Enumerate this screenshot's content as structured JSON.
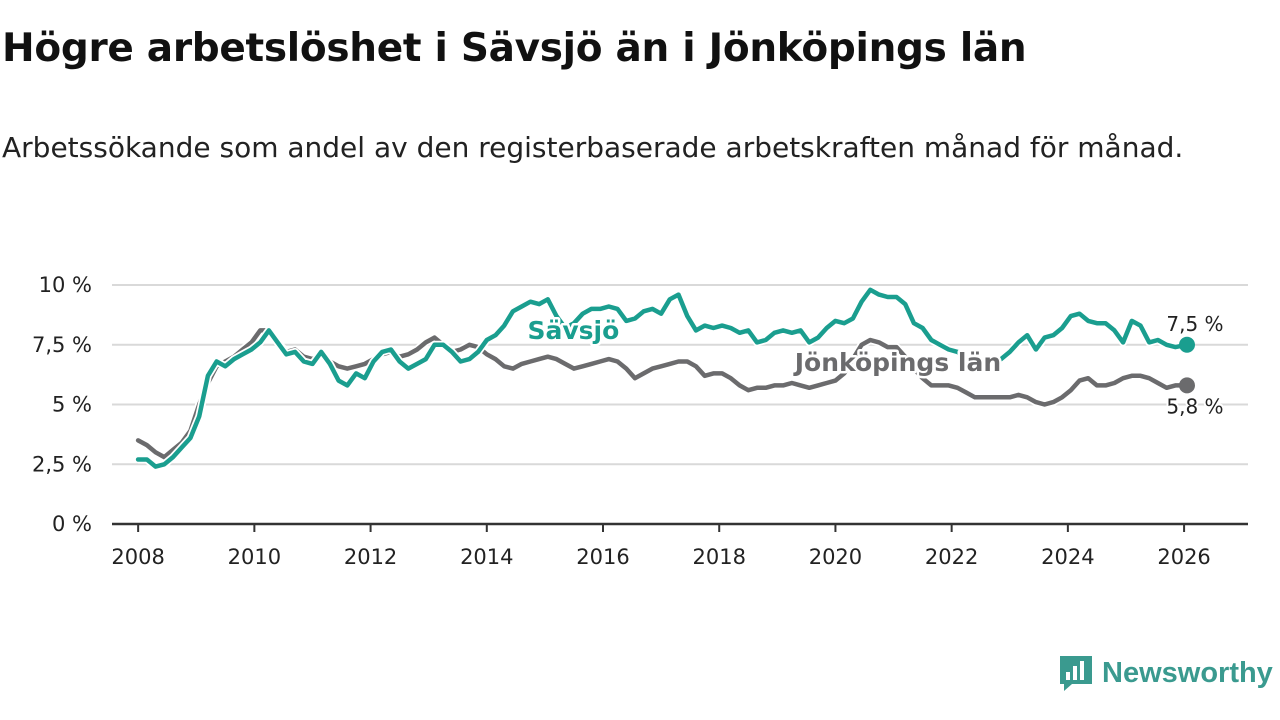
{
  "title": "Högre arbetslöshet i Sävsjö än i Jönköpings län",
  "subtitle": "Arbetssökande som andel av den registerbaserade arbetskraften månad för månad.",
  "brand": "Newsworthy",
  "colors": {
    "savsjo": "#1a9e8f",
    "lan": "#6b6b6d",
    "grid": "#d9d9d9",
    "axis": "#333333",
    "brand": "#3a9a8f"
  },
  "chart_data": {
    "type": "line",
    "title": "Högre arbetslöshet i Sävsjö än i Jönköpings län",
    "ylim": [
      0,
      10
    ],
    "xlim": [
      2007.55,
      2027.1
    ],
    "yticks": [
      0,
      2.5,
      5,
      7.5,
      10
    ],
    "ytick_labels": [
      "0 %",
      "2,5 %",
      "5 %",
      "7,5 %",
      "10 %"
    ],
    "xticks": [
      2008,
      2010,
      2012,
      2014,
      2016,
      2018,
      2020,
      2022,
      2024,
      2026
    ],
    "xtick_labels": [
      "2008",
      "2010",
      "2012",
      "2014",
      "2016",
      "2018",
      "2020",
      "2022",
      "2024",
      "2026"
    ],
    "grid": true,
    "series": [
      {
        "name": "Jönköpings län",
        "color": "#6b6b6d",
        "end_label": "5,8 %",
        "points": [
          [
            2008.0,
            3.5
          ],
          [
            2008.15,
            3.3
          ],
          [
            2008.3,
            3.0
          ],
          [
            2008.45,
            2.8
          ],
          [
            2008.6,
            3.1
          ],
          [
            2008.75,
            3.4
          ],
          [
            2008.9,
            3.9
          ],
          [
            2009.05,
            5.0
          ],
          [
            2009.2,
            5.9
          ],
          [
            2009.35,
            6.6
          ],
          [
            2009.5,
            6.8
          ],
          [
            2009.65,
            7.0
          ],
          [
            2009.8,
            7.3
          ],
          [
            2009.95,
            7.6
          ],
          [
            2010.1,
            8.1
          ],
          [
            2010.25,
            8.1
          ],
          [
            2010.4,
            7.6
          ],
          [
            2010.55,
            7.2
          ],
          [
            2010.7,
            7.3
          ],
          [
            2010.85,
            7.0
          ],
          [
            2011.0,
            6.9
          ],
          [
            2011.15,
            7.1
          ],
          [
            2011.3,
            6.8
          ],
          [
            2011.45,
            6.6
          ],
          [
            2011.6,
            6.5
          ],
          [
            2011.75,
            6.6
          ],
          [
            2011.9,
            6.7
          ],
          [
            2012.05,
            6.9
          ],
          [
            2012.2,
            7.1
          ],
          [
            2012.35,
            7.2
          ],
          [
            2012.5,
            7.0
          ],
          [
            2012.65,
            7.1
          ],
          [
            2012.8,
            7.3
          ],
          [
            2012.95,
            7.6
          ],
          [
            2013.1,
            7.8
          ],
          [
            2013.25,
            7.5
          ],
          [
            2013.4,
            7.2
          ],
          [
            2013.55,
            7.3
          ],
          [
            2013.7,
            7.5
          ],
          [
            2013.85,
            7.4
          ],
          [
            2014.0,
            7.1
          ],
          [
            2014.15,
            6.9
          ],
          [
            2014.3,
            6.6
          ],
          [
            2014.45,
            6.5
          ],
          [
            2014.6,
            6.7
          ],
          [
            2014.75,
            6.8
          ],
          [
            2014.9,
            6.9
          ],
          [
            2015.05,
            7.0
          ],
          [
            2015.2,
            6.9
          ],
          [
            2015.35,
            6.7
          ],
          [
            2015.5,
            6.5
          ],
          [
            2015.65,
            6.6
          ],
          [
            2015.8,
            6.7
          ],
          [
            2015.95,
            6.8
          ],
          [
            2016.1,
            6.9
          ],
          [
            2016.25,
            6.8
          ],
          [
            2016.4,
            6.5
          ],
          [
            2016.55,
            6.1
          ],
          [
            2016.7,
            6.3
          ],
          [
            2016.85,
            6.5
          ],
          [
            2017.0,
            6.6
          ],
          [
            2017.15,
            6.7
          ],
          [
            2017.3,
            6.8
          ],
          [
            2017.45,
            6.8
          ],
          [
            2017.6,
            6.6
          ],
          [
            2017.75,
            6.2
          ],
          [
            2017.9,
            6.3
          ],
          [
            2018.05,
            6.3
          ],
          [
            2018.2,
            6.1
          ],
          [
            2018.35,
            5.8
          ],
          [
            2018.5,
            5.6
          ],
          [
            2018.65,
            5.7
          ],
          [
            2018.8,
            5.7
          ],
          [
            2018.95,
            5.8
          ],
          [
            2019.1,
            5.8
          ],
          [
            2019.25,
            5.9
          ],
          [
            2019.4,
            5.8
          ],
          [
            2019.55,
            5.7
          ],
          [
            2019.7,
            5.8
          ],
          [
            2019.85,
            5.9
          ],
          [
            2020.0,
            6.0
          ],
          [
            2020.15,
            6.3
          ],
          [
            2020.3,
            6.9
          ],
          [
            2020.45,
            7.5
          ],
          [
            2020.6,
            7.7
          ],
          [
            2020.75,
            7.6
          ],
          [
            2020.9,
            7.4
          ],
          [
            2021.05,
            7.4
          ],
          [
            2021.2,
            7.0
          ],
          [
            2021.35,
            6.5
          ],
          [
            2021.5,
            6.1
          ],
          [
            2021.65,
            5.8
          ],
          [
            2021.8,
            5.8
          ],
          [
            2021.95,
            5.8
          ],
          [
            2022.1,
            5.7
          ],
          [
            2022.25,
            5.5
          ],
          [
            2022.4,
            5.3
          ],
          [
            2022.55,
            5.3
          ],
          [
            2022.7,
            5.3
          ],
          [
            2022.85,
            5.3
          ],
          [
            2023.0,
            5.3
          ],
          [
            2023.15,
            5.4
          ],
          [
            2023.3,
            5.3
          ],
          [
            2023.45,
            5.1
          ],
          [
            2023.6,
            5.0
          ],
          [
            2023.75,
            5.1
          ],
          [
            2023.9,
            5.3
          ],
          [
            2024.05,
            5.6
          ],
          [
            2024.2,
            6.0
          ],
          [
            2024.35,
            6.1
          ],
          [
            2024.5,
            5.8
          ],
          [
            2024.65,
            5.8
          ],
          [
            2024.8,
            5.9
          ],
          [
            2024.95,
            6.1
          ],
          [
            2025.1,
            6.2
          ],
          [
            2025.25,
            6.2
          ],
          [
            2025.4,
            6.1
          ],
          [
            2025.55,
            5.9
          ],
          [
            2025.7,
            5.7
          ],
          [
            2025.85,
            5.8
          ],
          [
            2026.05,
            5.8
          ]
        ]
      },
      {
        "name": "Sävsjö",
        "color": "#1a9e8f",
        "end_label": "7,5 %",
        "points": [
          [
            2008.0,
            2.7
          ],
          [
            2008.15,
            2.7
          ],
          [
            2008.3,
            2.4
          ],
          [
            2008.45,
            2.5
          ],
          [
            2008.6,
            2.8
          ],
          [
            2008.75,
            3.2
          ],
          [
            2008.9,
            3.6
          ],
          [
            2009.05,
            4.5
          ],
          [
            2009.2,
            6.2
          ],
          [
            2009.35,
            6.8
          ],
          [
            2009.5,
            6.6
          ],
          [
            2009.65,
            6.9
          ],
          [
            2009.8,
            7.1
          ],
          [
            2009.95,
            7.3
          ],
          [
            2010.1,
            7.6
          ],
          [
            2010.25,
            8.1
          ],
          [
            2010.4,
            7.6
          ],
          [
            2010.55,
            7.1
          ],
          [
            2010.7,
            7.2
          ],
          [
            2010.85,
            6.8
          ],
          [
            2011.0,
            6.7
          ],
          [
            2011.15,
            7.2
          ],
          [
            2011.3,
            6.7
          ],
          [
            2011.45,
            6.0
          ],
          [
            2011.6,
            5.8
          ],
          [
            2011.75,
            6.3
          ],
          [
            2011.9,
            6.1
          ],
          [
            2012.05,
            6.8
          ],
          [
            2012.2,
            7.2
          ],
          [
            2012.35,
            7.3
          ],
          [
            2012.5,
            6.8
          ],
          [
            2012.65,
            6.5
          ],
          [
            2012.8,
            6.7
          ],
          [
            2012.95,
            6.9
          ],
          [
            2013.1,
            7.5
          ],
          [
            2013.25,
            7.5
          ],
          [
            2013.4,
            7.2
          ],
          [
            2013.55,
            6.8
          ],
          [
            2013.7,
            6.9
          ],
          [
            2013.85,
            7.2
          ],
          [
            2014.0,
            7.7
          ],
          [
            2014.15,
            7.9
          ],
          [
            2014.3,
            8.3
          ],
          [
            2014.45,
            8.9
          ],
          [
            2014.6,
            9.1
          ],
          [
            2014.75,
            9.3
          ],
          [
            2014.9,
            9.2
          ],
          [
            2015.05,
            9.4
          ],
          [
            2015.2,
            8.7
          ],
          [
            2015.35,
            8.2
          ],
          [
            2015.5,
            8.4
          ],
          [
            2015.65,
            8.8
          ],
          [
            2015.8,
            9.0
          ],
          [
            2015.95,
            9.0
          ],
          [
            2016.1,
            9.1
          ],
          [
            2016.25,
            9.0
          ],
          [
            2016.4,
            8.5
          ],
          [
            2016.55,
            8.6
          ],
          [
            2016.7,
            8.9
          ],
          [
            2016.85,
            9.0
          ],
          [
            2017.0,
            8.8
          ],
          [
            2017.15,
            9.4
          ],
          [
            2017.3,
            9.6
          ],
          [
            2017.45,
            8.7
          ],
          [
            2017.6,
            8.1
          ],
          [
            2017.75,
            8.3
          ],
          [
            2017.9,
            8.2
          ],
          [
            2018.05,
            8.3
          ],
          [
            2018.2,
            8.2
          ],
          [
            2018.35,
            8.0
          ],
          [
            2018.5,
            8.1
          ],
          [
            2018.65,
            7.6
          ],
          [
            2018.8,
            7.7
          ],
          [
            2018.95,
            8.0
          ],
          [
            2019.1,
            8.1
          ],
          [
            2019.25,
            8.0
          ],
          [
            2019.4,
            8.1
          ],
          [
            2019.55,
            7.6
          ],
          [
            2019.7,
            7.8
          ],
          [
            2019.85,
            8.2
          ],
          [
            2020.0,
            8.5
          ],
          [
            2020.15,
            8.4
          ],
          [
            2020.3,
            8.6
          ],
          [
            2020.45,
            9.3
          ],
          [
            2020.6,
            9.8
          ],
          [
            2020.75,
            9.6
          ],
          [
            2020.9,
            9.5
          ],
          [
            2021.05,
            9.5
          ],
          [
            2021.2,
            9.2
          ],
          [
            2021.35,
            8.4
          ],
          [
            2021.5,
            8.2
          ],
          [
            2021.65,
            7.7
          ],
          [
            2021.8,
            7.5
          ],
          [
            2021.95,
            7.3
          ],
          [
            2022.1,
            7.2
          ],
          [
            2022.25,
            6.9
          ],
          [
            2022.4,
            6.6
          ],
          [
            2022.55,
            6.8
          ],
          [
            2022.7,
            6.7
          ],
          [
            2022.85,
            6.9
          ],
          [
            2023.0,
            7.2
          ],
          [
            2023.15,
            7.6
          ],
          [
            2023.3,
            7.9
          ],
          [
            2023.45,
            7.3
          ],
          [
            2023.6,
            7.8
          ],
          [
            2023.75,
            7.9
          ],
          [
            2023.9,
            8.2
          ],
          [
            2024.05,
            8.7
          ],
          [
            2024.2,
            8.8
          ],
          [
            2024.35,
            8.5
          ],
          [
            2024.5,
            8.4
          ],
          [
            2024.65,
            8.4
          ],
          [
            2024.8,
            8.1
          ],
          [
            2024.95,
            7.6
          ],
          [
            2025.1,
            8.5
          ],
          [
            2025.25,
            8.3
          ],
          [
            2025.4,
            7.6
          ],
          [
            2025.55,
            7.7
          ],
          [
            2025.7,
            7.5
          ],
          [
            2025.85,
            7.4
          ],
          [
            2026.05,
            7.5
          ]
        ]
      }
    ],
    "annotations": [
      {
        "series": "Sävsjö",
        "text": "Sävsjö",
        "x": 2014.7,
        "y": 7.75
      },
      {
        "series": "Jönköpings län",
        "text": "Jönköpings län",
        "x": 2019.3,
        "y": 6.4
      }
    ]
  }
}
